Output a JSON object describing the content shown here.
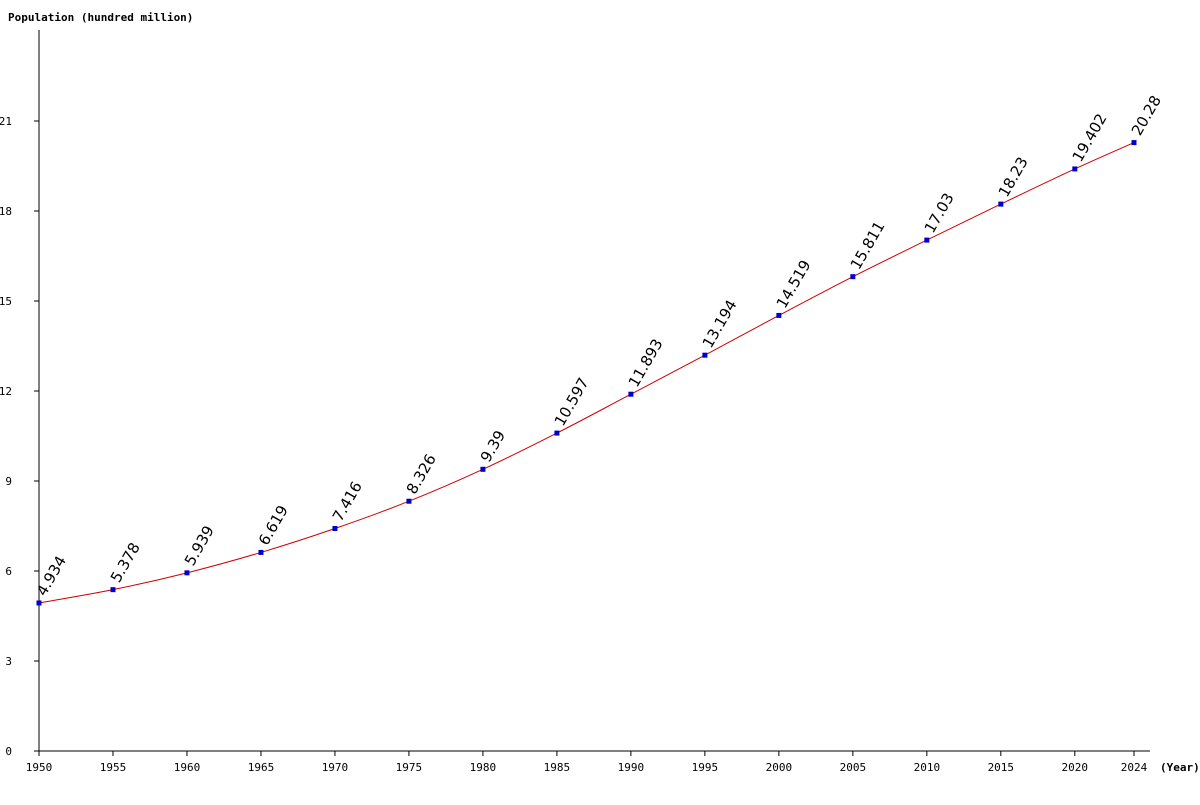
{
  "chart_data": {
    "type": "line",
    "ylabel": "Population (hundred million)",
    "xlabel": "(Year)",
    "x": [
      1950,
      1955,
      1960,
      1965,
      1970,
      1975,
      1980,
      1985,
      1990,
      1995,
      2000,
      2005,
      2010,
      2015,
      2020,
      2024
    ],
    "x_tick_labels": [
      "1950",
      "1955",
      "1960",
      "1965",
      "1970",
      "1975",
      "1980",
      "1985",
      "1990",
      "1995",
      "2000",
      "2005",
      "2010",
      "2015",
      "2020",
      "2024"
    ],
    "y_ticks": [
      0,
      3,
      6,
      9,
      12,
      15,
      18,
      21
    ],
    "y_tick_labels": [
      "0",
      "3",
      "6",
      "9",
      "12",
      "15",
      "18",
      "21"
    ],
    "ylim": [
      0,
      24
    ],
    "xlim": [
      1950,
      2025
    ],
    "series": [
      {
        "values": [
          4.934,
          5.378,
          5.939,
          6.619,
          7.416,
          8.326,
          9.39,
          10.597,
          11.893,
          13.194,
          14.519,
          15.811,
          17.03,
          18.23,
          19.402,
          20.28
        ],
        "labels": [
          "4.934",
          "5.378",
          "5.939",
          "6.619",
          "7.416",
          "8.326",
          "9.39",
          "10.597",
          "11.893",
          "13.194",
          "14.519",
          "15.811",
          "17.03",
          "18.23",
          "19.402",
          "20.28"
        ]
      }
    ],
    "colors": {
      "line": "#cc0000",
      "marker": "#0000cc",
      "axis": "#000000"
    },
    "grid": false,
    "legend": "none"
  }
}
